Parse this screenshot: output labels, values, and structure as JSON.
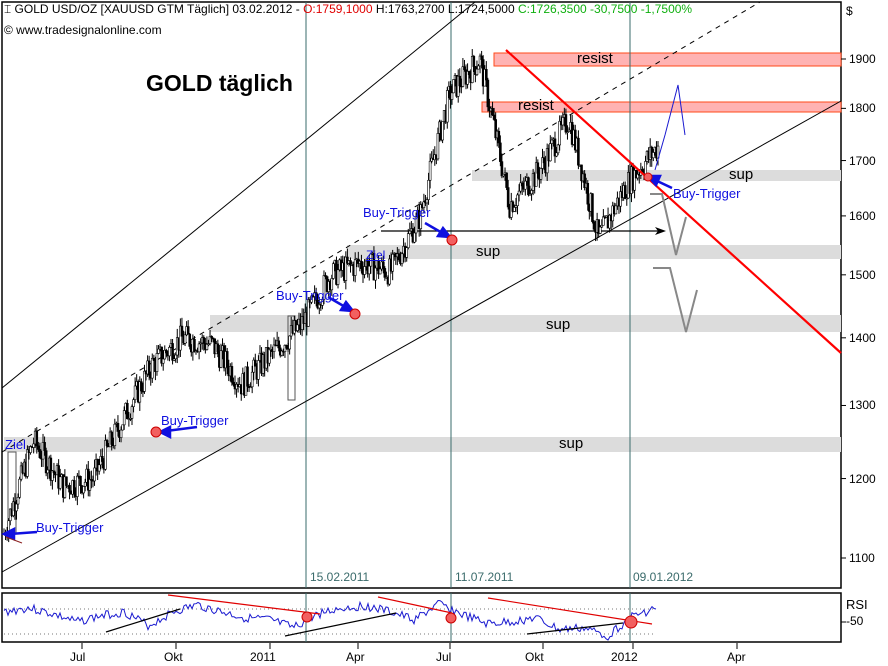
{
  "header": {
    "instrument": "GOLD USD/OZ [XAUUSD GTM  Täglich] 03.02.2012 - ",
    "open": "O:1759,1000",
    "high_low": " H:1763,2700 L:1724,5000 ",
    "close_change": "C:1726,3500 -30,7500 -1,7500%",
    "copyright": "© www.tradesignalonline.com",
    "currency": "$"
  },
  "title": "GOLD täglich",
  "colors": {
    "candle": "#000000",
    "resist_fill": "#ffb3b3",
    "resist_border": "#ff4a1a",
    "sup_fill": "#dcdcdc",
    "trendline_red": "#ff0000",
    "annotation_blue": "#1010e0",
    "rsi_line": "#1a1ad0",
    "vline": "#3a6b6b"
  },
  "annotations": {
    "zones": [
      {
        "type": "resist",
        "label": "resist"
      },
      {
        "type": "resist",
        "label": "resist"
      },
      {
        "type": "sup",
        "label": "sup"
      },
      {
        "type": "sup",
        "label": "sup"
      },
      {
        "type": "sup",
        "label": "sup"
      },
      {
        "type": "sup",
        "label": "sup"
      }
    ],
    "buy_trigger": "Buy-Trigger",
    "ziel": "Ziel",
    "vertical_dates": [
      "15.02.2011",
      "11.07.2011",
      "09.01.2012"
    ]
  },
  "rsi": {
    "label": "RSI",
    "level": "-50"
  },
  "chart_data": [
    {
      "type": "candlestick",
      "title": "GOLD täglich",
      "subtitle": "GOLD USD/OZ [XAUUSD GTM Täglich] 03.02.2012",
      "xlabel": "",
      "ylabel": "$",
      "scale": "log",
      "ylim": [
        1060,
        1930
      ],
      "y_ticks": [
        1100,
        1200,
        1300,
        1400,
        1500,
        1600,
        1700,
        1800,
        1900
      ],
      "x_ticks": [
        "Jul",
        "Okt",
        "2011",
        "Apr",
        "Jul",
        "Okt",
        "2012",
        "Apr"
      ],
      "grid": false,
      "last_bar": {
        "date": "03.02.2012",
        "open": 1759.1,
        "high": 1763.27,
        "low": 1724.5,
        "close": 1726.35,
        "change": -30.75,
        "change_pct": -1.75
      },
      "approx_close_path": [
        {
          "x": "Mai 2010",
          "y": 1130
        },
        {
          "x": "Jun 2010",
          "y": 1250
        },
        {
          "x": "Jul 2010",
          "y": 1190
        },
        {
          "x": "Aug 2010",
          "y": 1200
        },
        {
          "x": "Sep 2010",
          "y": 1280
        },
        {
          "x": "Okt 2010",
          "y": 1360
        },
        {
          "x": "Nov 2010",
          "y": 1400
        },
        {
          "x": "Dez 2010",
          "y": 1390
        },
        {
          "x": "Jan 2011",
          "y": 1330
        },
        {
          "x": "Feb 2011",
          "y": 1375
        },
        {
          "x": "Mrz 2011",
          "y": 1420
        },
        {
          "x": "Apr 2011",
          "y": 1500
        },
        {
          "x": "Mai 2011",
          "y": 1520
        },
        {
          "x": "Jun 2011",
          "y": 1505
        },
        {
          "x": "Jul 2011",
          "y": 1600
        },
        {
          "x": "Aug 2011",
          "y": 1830
        },
        {
          "x": "Sep 2011",
          "y": 1900
        },
        {
          "x": "Sep 2011b",
          "y": 1620
        },
        {
          "x": "Okt 2011",
          "y": 1680
        },
        {
          "x": "Nov 2011",
          "y": 1780
        },
        {
          "x": "Dez 2011",
          "y": 1560
        },
        {
          "x": "Jan 2012",
          "y": 1660
        },
        {
          "x": "Feb 2012",
          "y": 1726
        }
      ],
      "horizontal_zones": [
        {
          "label": "resist",
          "from": 1880,
          "to": 1905
        },
        {
          "label": "resist",
          "from": 1795,
          "to": 1815
        },
        {
          "label": "sup",
          "from": 1665,
          "to": 1685
        },
        {
          "label": "sup",
          "from": 1525,
          "to": 1545
        },
        {
          "label": "sup",
          "from": 1410,
          "to": 1430
        },
        {
          "label": "sup",
          "from": 1240,
          "to": 1255
        }
      ],
      "trendlines": [
        {
          "name": "red downtrend",
          "from": {
            "x": "Sep 2011",
            "y": 1910
          },
          "to": {
            "x": "Mai 2012",
            "y": 1380
          }
        },
        {
          "name": "channel lower",
          "from": {
            "x": "Mai 2010",
            "y": 1080
          },
          "to": {
            "x": "Mai 2012",
            "y": 1800
          }
        },
        {
          "name": "channel upper",
          "from": {
            "x": "Mai 2010",
            "y": 1320
          },
          "to": {
            "x": "Jan 2011",
            "y": 1960
          }
        }
      ],
      "markers": [
        {
          "label": "Buy-Trigger",
          "y": 1130
        },
        {
          "label": "Buy-Trigger",
          "y": 1262
        },
        {
          "label": "Buy-Trigger",
          "y": 1435
        },
        {
          "label": "Buy-Trigger",
          "y": 1558
        },
        {
          "label": "Buy-Trigger",
          "y": 1675
        },
        {
          "label": "Ziel",
          "y": 1260
        },
        {
          "label": "Ziel",
          "y": 1530
        }
      ]
    },
    {
      "type": "line",
      "title": "RSI",
      "y_ticks": [
        50
      ],
      "series": [
        {
          "name": "RSI",
          "approx": "oscillates between ~35 and ~70"
        }
      ]
    }
  ]
}
